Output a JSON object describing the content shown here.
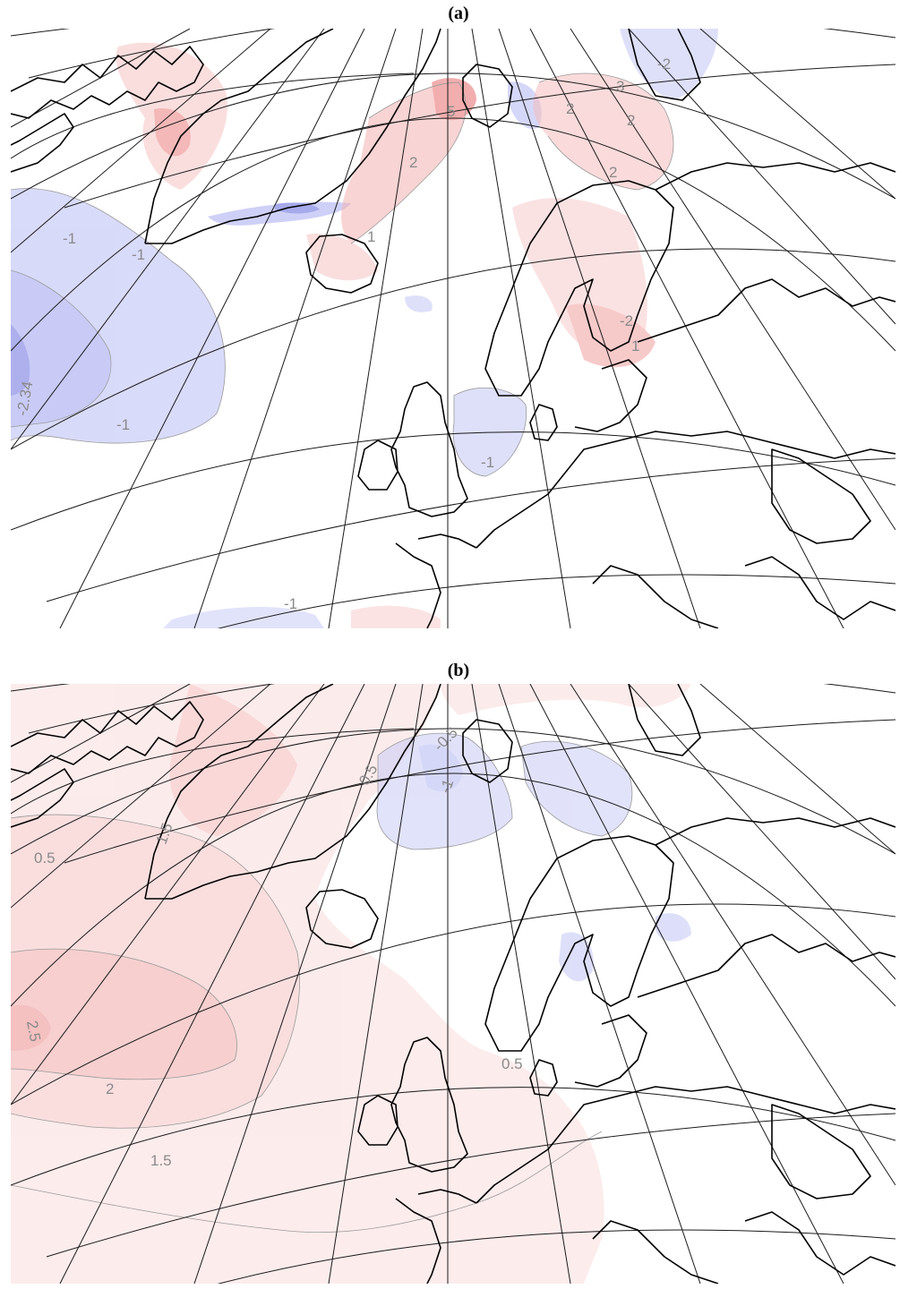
{
  "panels": [
    {
      "id": "a",
      "label": "(a)",
      "contour_labels": [
        "-1",
        "-1",
        "1",
        "2",
        "5",
        "2",
        "3",
        "2",
        "-2",
        "2",
        "-1",
        "1",
        "-1",
        "-2",
        "-2.34",
        "-1"
      ]
    },
    {
      "id": "b",
      "label": "(b)",
      "contour_labels": [
        "0.5",
        "1.5",
        "0.5",
        "-0.5",
        "-1",
        "2.5",
        "2",
        "1.5",
        "0.5"
      ]
    }
  ],
  "colors": {
    "positive_anomaly": "#f28b8b",
    "negative_anomaly": "#8a8ee8",
    "coastline": "#000000",
    "graticule": "#1a1a1a",
    "contour_label": "#8a8a8a"
  }
}
